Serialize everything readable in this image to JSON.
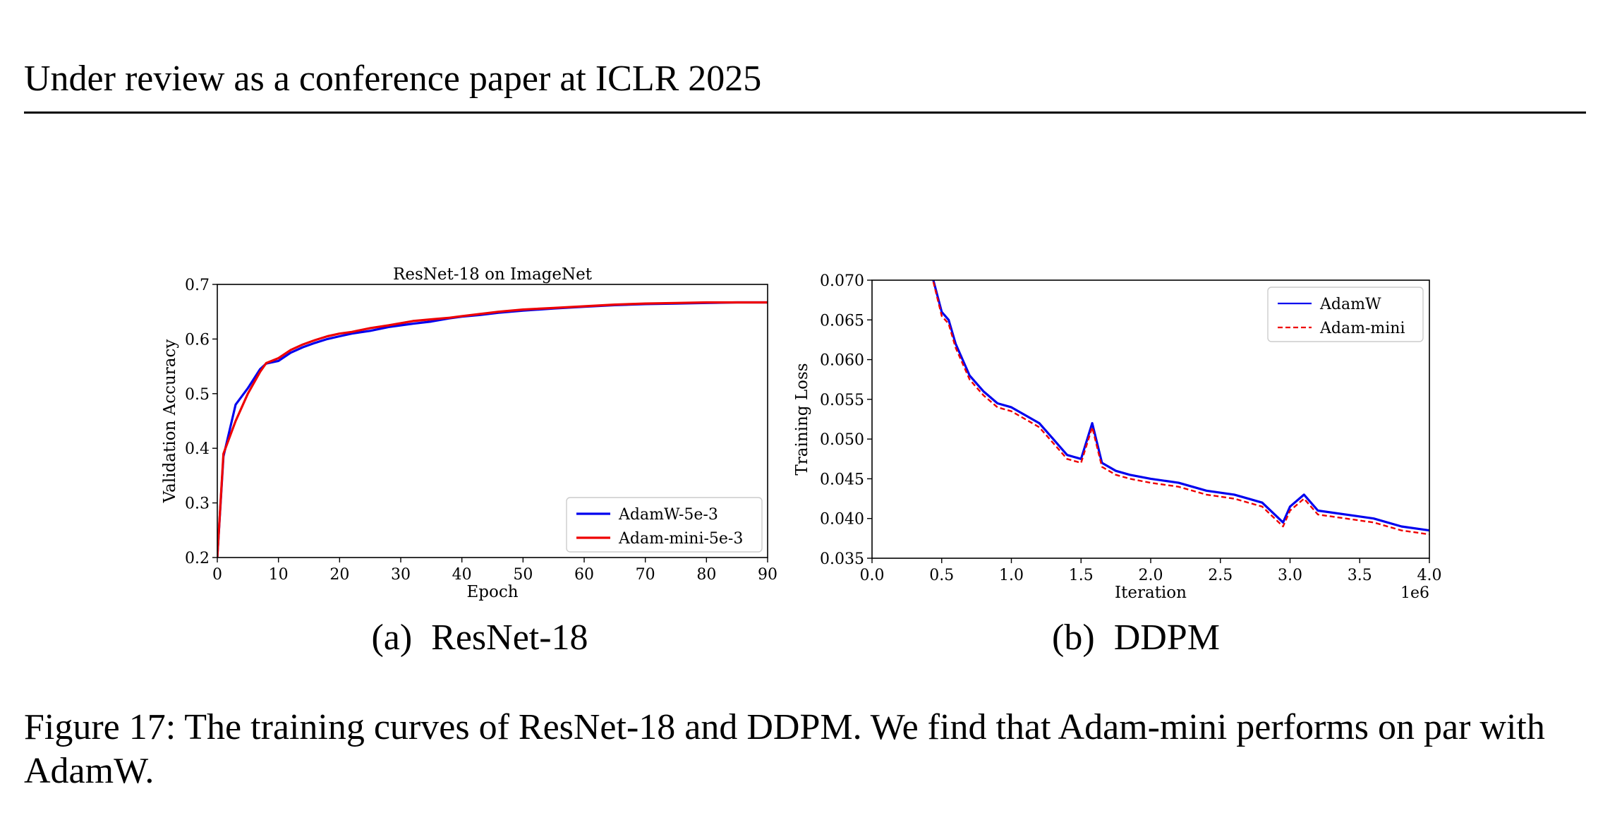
{
  "header": {
    "text": "Under review as a conference paper at ICLR 2025"
  },
  "subfigures": [
    {
      "label": "(a)",
      "title": "ResNet-18"
    },
    {
      "label": "(b)",
      "title": "DDPM"
    }
  ],
  "caption": {
    "text": "Figure 17: The training curves of ResNet-18 and DDPM. We find that Adam-mini performs on par with AdamW."
  },
  "chart_data": [
    {
      "type": "line",
      "title": "ResNet-18 on ImageNet",
      "xlabel": "Epoch",
      "ylabel": "Validation Accuracy",
      "xlim": [
        0,
        90
      ],
      "ylim": [
        0.2,
        0.7
      ],
      "xticks": [
        0,
        10,
        20,
        30,
        40,
        50,
        60,
        70,
        80,
        90
      ],
      "yticks": [
        0.2,
        0.3,
        0.4,
        0.5,
        0.6,
        0.7
      ],
      "xticklabels": [
        "0",
        "10",
        "20",
        "30",
        "40",
        "50",
        "60",
        "70",
        "80",
        "90"
      ],
      "yticklabels": [
        "0.2",
        "0.3",
        "0.4",
        "0.5",
        "0.6",
        "0.7"
      ],
      "legend_position": "lower right",
      "grid": false,
      "series": [
        {
          "name": "AdamW-5e-3",
          "color": "#0000ee",
          "style": "solid",
          "x": [
            0,
            1,
            3,
            5,
            7,
            8,
            10,
            12,
            14,
            16,
            18,
            20,
            22,
            25,
            28,
            30,
            32,
            35,
            38,
            40,
            43,
            46,
            50,
            55,
            60,
            65,
            70,
            75,
            80,
            85,
            90
          ],
          "y": [
            0.2,
            0.385,
            0.48,
            0.51,
            0.545,
            0.555,
            0.56,
            0.575,
            0.585,
            0.593,
            0.6,
            0.605,
            0.61,
            0.615,
            0.622,
            0.625,
            0.628,
            0.632,
            0.638,
            0.641,
            0.644,
            0.648,
            0.652,
            0.656,
            0.659,
            0.662,
            0.664,
            0.665,
            0.666,
            0.667,
            0.667
          ]
        },
        {
          "name": "Adam-mini-5e-3",
          "color": "#ee0000",
          "style": "solid",
          "x": [
            0,
            1,
            3,
            5,
            7,
            8,
            10,
            12,
            14,
            16,
            18,
            20,
            22,
            25,
            28,
            30,
            32,
            35,
            38,
            40,
            43,
            46,
            50,
            55,
            60,
            65,
            70,
            75,
            80,
            85,
            90
          ],
          "y": [
            0.2,
            0.39,
            0.45,
            0.5,
            0.54,
            0.556,
            0.565,
            0.58,
            0.59,
            0.598,
            0.605,
            0.61,
            0.613,
            0.62,
            0.625,
            0.629,
            0.633,
            0.636,
            0.639,
            0.642,
            0.646,
            0.65,
            0.654,
            0.657,
            0.66,
            0.663,
            0.665,
            0.666,
            0.667,
            0.667,
            0.667
          ]
        }
      ]
    },
    {
      "type": "line",
      "title": "",
      "xlabel": "Iteration",
      "x_offset_label": "1e6",
      "ylabel": "Training Loss",
      "xlim": [
        0.0,
        4.0
      ],
      "ylim": [
        0.035,
        0.07
      ],
      "xticks": [
        0.0,
        0.5,
        1.0,
        1.5,
        2.0,
        2.5,
        3.0,
        3.5,
        4.0
      ],
      "yticks": [
        0.035,
        0.04,
        0.045,
        0.05,
        0.055,
        0.06,
        0.065,
        0.07
      ],
      "xticklabels": [
        "0.0",
        "0.5",
        "1.0",
        "1.5",
        "2.0",
        "2.5",
        "3.0",
        "3.5",
        "4.0"
      ],
      "yticklabels": [
        "0.035",
        "0.040",
        "0.045",
        "0.050",
        "0.055",
        "0.060",
        "0.065",
        "0.070"
      ],
      "legend_position": "upper right",
      "grid": false,
      "series": [
        {
          "name": "AdamW",
          "color": "#0000ee",
          "style": "solid",
          "x": [
            0.44,
            0.5,
            0.55,
            0.6,
            0.65,
            0.7,
            0.75,
            0.8,
            0.9,
            1.0,
            1.1,
            1.2,
            1.3,
            1.4,
            1.5,
            1.58,
            1.65,
            1.75,
            1.85,
            2.0,
            2.2,
            2.4,
            2.6,
            2.8,
            2.95,
            3.0,
            3.1,
            3.2,
            3.4,
            3.6,
            3.8,
            4.0
          ],
          "y": [
            0.07,
            0.066,
            0.065,
            0.062,
            0.06,
            0.058,
            0.057,
            0.056,
            0.0545,
            0.054,
            0.053,
            0.052,
            0.05,
            0.048,
            0.0475,
            0.052,
            0.047,
            0.046,
            0.0455,
            0.045,
            0.0445,
            0.0435,
            0.043,
            0.042,
            0.0395,
            0.0415,
            0.043,
            0.041,
            0.0405,
            0.04,
            0.039,
            0.0385
          ]
        },
        {
          "name": "Adam-mini",
          "color": "#ee0000",
          "style": "dashed",
          "x": [
            0.44,
            0.5,
            0.55,
            0.6,
            0.65,
            0.7,
            0.75,
            0.8,
            0.9,
            1.0,
            1.1,
            1.2,
            1.3,
            1.4,
            1.5,
            1.58,
            1.65,
            1.75,
            1.85,
            2.0,
            2.2,
            2.4,
            2.6,
            2.8,
            2.95,
            3.0,
            3.1,
            3.2,
            3.4,
            3.6,
            3.8,
            4.0
          ],
          "y": [
            0.0698,
            0.0655,
            0.0645,
            0.0615,
            0.0595,
            0.0575,
            0.0565,
            0.0555,
            0.054,
            0.0535,
            0.0525,
            0.0515,
            0.0495,
            0.0475,
            0.047,
            0.0515,
            0.0465,
            0.0455,
            0.045,
            0.0445,
            0.044,
            0.043,
            0.0425,
            0.0415,
            0.039,
            0.041,
            0.0425,
            0.0405,
            0.04,
            0.0395,
            0.0385,
            0.038
          ]
        }
      ]
    }
  ]
}
